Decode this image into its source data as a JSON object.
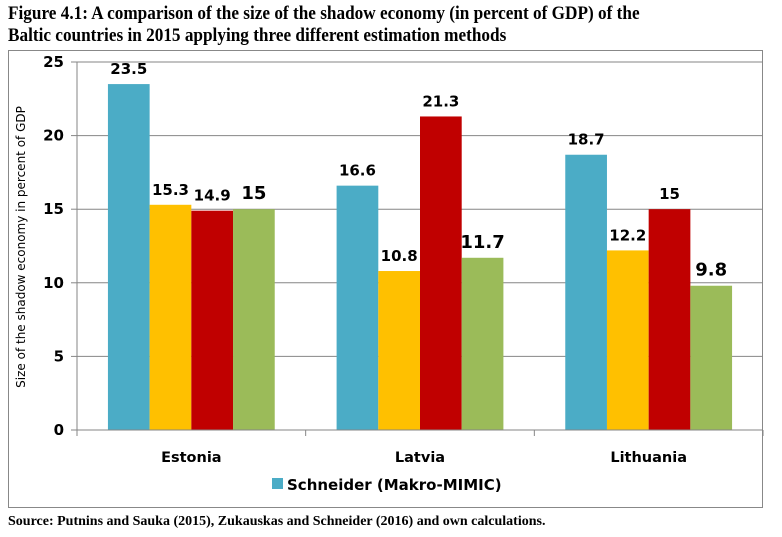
{
  "figure": {
    "title_line1": "Figure 4.1: A comparison of the size of the shadow economy (in percent of GDP) of the",
    "title_line2": "Baltic countries in 2015 applying three different estimation methods",
    "source": "Source: Putnins and Sauka (2015), Zukauskas and Schneider (2016) and own calculations."
  },
  "chart_data": {
    "type": "bar",
    "title": "A comparison of the size of the shadow economy (in percent of GDP) of the Baltic countries in 2015 applying three different estimation methods",
    "xlabel": "",
    "ylabel": "Size of the shadow economy in percent  of GDP",
    "ylim": [
      0,
      25
    ],
    "yticks": [
      0,
      5,
      10,
      15,
      20,
      25
    ],
    "grid": true,
    "categories": [
      "Estonia",
      "Latvia",
      "Lithuania"
    ],
    "series": [
      {
        "name": "Schneider (Makro-MIMIC)",
        "color": "#4BACC6",
        "values": [
          23.5,
          16.6,
          18.7
        ],
        "labels": [
          "23.5",
          "16.6",
          "18.7"
        ]
      },
      {
        "name": "",
        "color": "#FFC000",
        "values": [
          15.3,
          10.8,
          12.2
        ],
        "labels": [
          "15.3",
          "10.8",
          "12.2"
        ]
      },
      {
        "name": "",
        "color": "#C00000",
        "values": [
          14.9,
          21.3,
          15.0
        ],
        "labels": [
          "14.9",
          "21.3",
          "15"
        ]
      },
      {
        "name": "",
        "color": "#9BBB59",
        "values": [
          15.0,
          11.7,
          9.8
        ],
        "labels": [
          "15",
          "11.7",
          "9.8"
        ]
      }
    ],
    "legend": {
      "visible_entries": [
        "Schneider (Makro-MIMIC)"
      ],
      "placement": "bottom"
    }
  }
}
